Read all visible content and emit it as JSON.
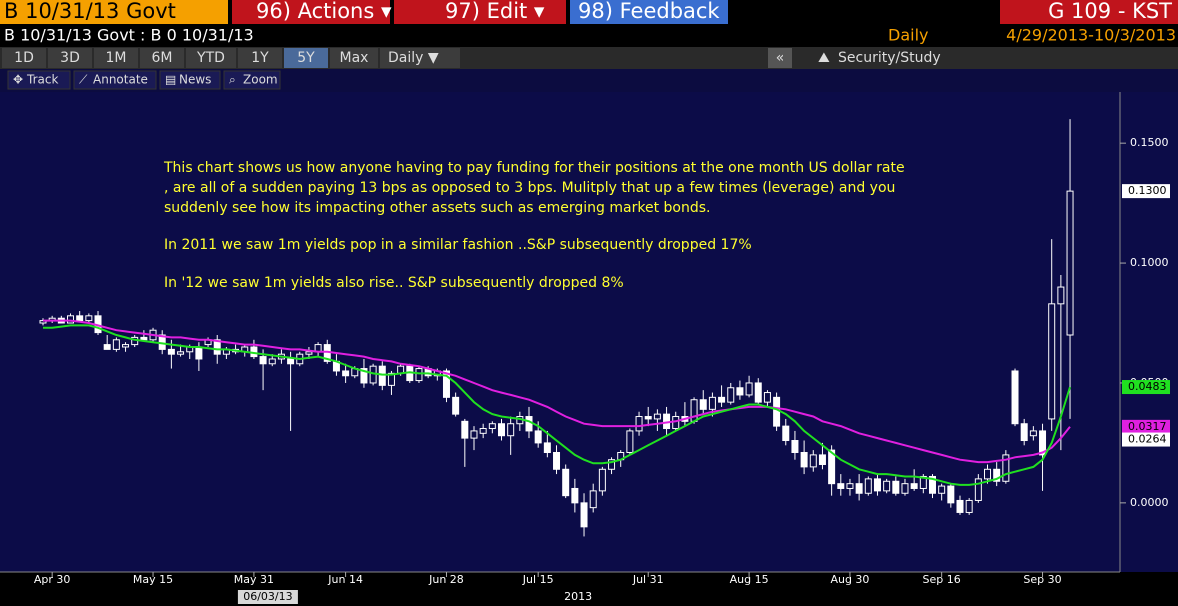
{
  "toolbar": {
    "security": "B 10/31/13 Govt",
    "actions": "96) Actions ▾",
    "edit": "97) Edit ▾",
    "feedback": "98) Feedback",
    "function": "G 109 - KST",
    "subtitle": "B 10/31/13 Govt : B 0 10/31/13",
    "frequency": "Daily",
    "range": "4/29/2013-10/3/2013",
    "periods": [
      "1D",
      "3D",
      "1M",
      "6M",
      "YTD",
      "1Y",
      "5Y",
      "Max"
    ],
    "active_period": 6,
    "period_frequency": "Daily ▼",
    "collapse": "«",
    "study": "Security/Study",
    "tools": [
      "Track",
      "Annotate",
      "News",
      "Zoom"
    ]
  },
  "chart_data": {
    "type": "candlestick",
    "annotation": [
      "This chart shows us how anyone having to pay funding for their positions at the one month US dollar rate",
      ", are all of a sudden paying 13 bps as opposed to 3 bps. Mulitply that up a few times (leverage) and you",
      "suddenly see how its impacting other assets such as emerging market bonds.",
      "In 2011 we saw 1m yields pop in a similar fashion ..S&P subsequently dropped 17%",
      "In '12 we saw 1m yields also rise.. S&P subsequently dropped 8%"
    ],
    "categories": [
      null,
      "Apr 30",
      null,
      null,
      null,
      null,
      null,
      null,
      null,
      null,
      null,
      null,
      "May 15",
      null,
      null,
      null,
      null,
      null,
      null,
      null,
      null,
      null,
      null,
      "May 31",
      null,
      null,
      null,
      null,
      null,
      null,
      null,
      null,
      null,
      "Jun 14",
      null,
      null,
      null,
      null,
      null,
      null,
      null,
      null,
      null,
      null,
      "Jun 28",
      null,
      null,
      null,
      null,
      null,
      null,
      null,
      null,
      null,
      "Jul 15",
      null,
      null,
      null,
      null,
      null,
      null,
      null,
      null,
      null,
      null,
      null,
      "Jul 31",
      null,
      null,
      null,
      null,
      null,
      null,
      null,
      null,
      null,
      null,
      "Aug 15",
      null,
      null,
      null,
      null,
      null,
      null,
      null,
      null,
      null,
      null,
      "Aug 30",
      null,
      null,
      null,
      null,
      null,
      null,
      null,
      null,
      null,
      "Sep 16",
      null,
      null,
      null,
      null,
      null,
      null,
      null,
      null,
      null,
      null,
      "Sep 30",
      null,
      null,
      null
    ],
    "date_marker": "06/03/13",
    "year": "2013",
    "ohlc": [
      [
        0.075,
        0.077,
        0.074,
        0.076
      ],
      [
        0.076,
        0.078,
        0.075,
        0.077
      ],
      [
        0.077,
        0.078,
        0.075,
        0.075
      ],
      [
        0.075,
        0.079,
        0.075,
        0.078
      ],
      [
        0.078,
        0.08,
        0.076,
        0.076
      ],
      [
        0.076,
        0.079,
        0.075,
        0.078
      ],
      [
        0.078,
        0.08,
        0.07,
        0.071
      ],
      [
        0.066,
        0.07,
        0.064,
        0.064
      ],
      [
        0.064,
        0.069,
        0.063,
        0.068
      ],
      [
        0.065,
        0.067,
        0.063,
        0.066
      ],
      [
        0.066,
        0.07,
        0.065,
        0.069
      ],
      [
        0.069,
        0.072,
        0.068,
        0.068
      ],
      [
        0.068,
        0.073,
        0.067,
        0.072
      ],
      [
        0.07,
        0.072,
        0.062,
        0.064
      ],
      [
        0.064,
        0.068,
        0.056,
        0.062
      ],
      [
        0.062,
        0.066,
        0.061,
        0.063
      ],
      [
        0.063,
        0.066,
        0.06,
        0.065
      ],
      [
        0.065,
        0.067,
        0.055,
        0.06
      ],
      [
        0.066,
        0.069,
        0.065,
        0.068
      ],
      [
        0.068,
        0.07,
        0.058,
        0.062
      ],
      [
        0.062,
        0.065,
        0.06,
        0.064
      ],
      [
        0.064,
        0.066,
        0.062,
        0.063
      ],
      [
        0.063,
        0.066,
        0.061,
        0.065
      ],
      [
        0.065,
        0.068,
        0.06,
        0.061
      ],
      [
        0.061,
        0.064,
        0.047,
        0.058
      ],
      [
        0.058,
        0.062,
        0.057,
        0.06
      ],
      [
        0.06,
        0.064,
        0.058,
        0.062
      ],
      [
        0.06,
        0.063,
        0.03,
        0.058
      ],
      [
        0.058,
        0.063,
        0.057,
        0.062
      ],
      [
        0.062,
        0.065,
        0.06,
        0.063
      ],
      [
        0.063,
        0.067,
        0.061,
        0.066
      ],
      [
        0.066,
        0.068,
        0.058,
        0.059
      ],
      [
        0.059,
        0.062,
        0.053,
        0.055
      ],
      [
        0.055,
        0.058,
        0.05,
        0.053
      ],
      [
        0.053,
        0.057,
        0.052,
        0.056
      ],
      [
        0.056,
        0.06,
        0.048,
        0.05
      ],
      [
        0.05,
        0.058,
        0.049,
        0.057
      ],
      [
        0.057,
        0.059,
        0.047,
        0.049
      ],
      [
        0.049,
        0.055,
        0.045,
        0.054
      ],
      [
        0.054,
        0.058,
        0.053,
        0.057
      ],
      [
        0.057,
        0.058,
        0.05,
        0.051
      ],
      [
        0.051,
        0.057,
        0.05,
        0.056
      ],
      [
        0.056,
        0.057,
        0.052,
        0.053
      ],
      [
        0.053,
        0.056,
        0.051,
        0.055
      ],
      [
        0.055,
        0.056,
        0.042,
        0.044
      ],
      [
        0.044,
        0.046,
        0.036,
        0.037
      ],
      [
        0.034,
        0.035,
        0.015,
        0.027
      ],
      [
        0.027,
        0.032,
        0.022,
        0.03
      ],
      [
        0.029,
        0.033,
        0.027,
        0.031
      ],
      [
        0.031,
        0.034,
        0.029,
        0.033
      ],
      [
        0.033,
        0.035,
        0.026,
        0.028
      ],
      [
        0.028,
        0.036,
        0.02,
        0.033
      ],
      [
        0.033,
        0.038,
        0.03,
        0.036
      ],
      [
        0.036,
        0.04,
        0.027,
        0.03
      ],
      [
        0.03,
        0.034,
        0.023,
        0.025
      ],
      [
        0.025,
        0.03,
        0.019,
        0.021
      ],
      [
        0.021,
        0.024,
        0.012,
        0.014
      ],
      [
        0.014,
        0.016,
        0.002,
        0.003
      ],
      [
        0.006,
        0.01,
        -0.004,
        0.0
      ],
      [
        0.0,
        0.004,
        -0.014,
        -0.01
      ],
      [
        -0.002,
        0.008,
        -0.004,
        0.005
      ],
      [
        0.005,
        0.015,
        0.003,
        0.014
      ],
      [
        0.014,
        0.019,
        0.012,
        0.018
      ],
      [
        0.018,
        0.022,
        0.015,
        0.021
      ],
      [
        0.021,
        0.031,
        0.02,
        0.03
      ],
      [
        0.03,
        0.038,
        0.028,
        0.036
      ],
      [
        0.036,
        0.04,
        0.032,
        0.035
      ],
      [
        0.035,
        0.039,
        0.03,
        0.037
      ],
      [
        0.037,
        0.04,
        0.028,
        0.031
      ],
      [
        0.031,
        0.038,
        0.03,
        0.036
      ],
      [
        0.036,
        0.042,
        0.032,
        0.034
      ],
      [
        0.034,
        0.044,
        0.033,
        0.043
      ],
      [
        0.043,
        0.047,
        0.037,
        0.039
      ],
      [
        0.039,
        0.046,
        0.036,
        0.044
      ],
      [
        0.044,
        0.049,
        0.04,
        0.042
      ],
      [
        0.042,
        0.05,
        0.041,
        0.048
      ],
      [
        0.048,
        0.051,
        0.043,
        0.045
      ],
      [
        0.045,
        0.053,
        0.044,
        0.05
      ],
      [
        0.05,
        0.052,
        0.041,
        0.042
      ],
      [
        0.042,
        0.047,
        0.04,
        0.046
      ],
      [
        0.044,
        0.046,
        0.03,
        0.032
      ],
      [
        0.032,
        0.035,
        0.024,
        0.026
      ],
      [
        0.026,
        0.03,
        0.018,
        0.021
      ],
      [
        0.021,
        0.026,
        0.012,
        0.015
      ],
      [
        0.015,
        0.022,
        0.013,
        0.02
      ],
      [
        0.02,
        0.025,
        0.014,
        0.016
      ],
      [
        0.022,
        0.024,
        0.003,
        0.008
      ],
      [
        0.008,
        0.012,
        0.003,
        0.006
      ],
      [
        0.006,
        0.01,
        0.003,
        0.008
      ],
      [
        0.008,
        0.012,
        0.001,
        0.004
      ],
      [
        0.004,
        0.011,
        0.003,
        0.01
      ],
      [
        0.01,
        0.012,
        0.003,
        0.005
      ],
      [
        0.005,
        0.01,
        0.004,
        0.009
      ],
      [
        0.009,
        0.011,
        0.003,
        0.004
      ],
      [
        0.004,
        0.01,
        0.003,
        0.008
      ],
      [
        0.008,
        0.014,
        0.005,
        0.006
      ],
      [
        0.006,
        0.012,
        0.004,
        0.011
      ],
      [
        0.011,
        0.012,
        0.002,
        0.004
      ],
      [
        0.004,
        0.008,
        0.001,
        0.007
      ],
      [
        0.007,
        0.008,
        -0.002,
        0.0
      ],
      [
        0.001,
        0.003,
        -0.005,
        -0.004
      ],
      [
        -0.004,
        0.002,
        -0.005,
        0.001
      ],
      [
        0.001,
        0.012,
        0.0,
        0.01
      ],
      [
        0.01,
        0.016,
        0.008,
        0.014
      ],
      [
        0.014,
        0.017,
        0.007,
        0.009
      ],
      [
        0.009,
        0.022,
        0.008,
        0.02
      ],
      [
        0.055,
        0.056,
        0.032,
        0.033
      ],
      [
        0.033,
        0.035,
        0.024,
        0.026
      ],
      [
        0.028,
        0.032,
        0.026,
        0.03
      ],
      [
        0.03,
        0.033,
        0.005,
        0.02
      ],
      [
        0.035,
        0.11,
        0.03,
        0.083
      ],
      [
        0.083,
        0.095,
        0.022,
        0.09
      ],
      [
        0.07,
        0.16,
        0.035,
        0.13
      ]
    ],
    "series": [
      {
        "color": "#e020e0",
        "values": [
          0.076,
          0.076,
          0.076,
          0.076,
          0.0755,
          0.075,
          0.074,
          0.073,
          0.072,
          0.0715,
          0.071,
          0.0705,
          0.07,
          0.0695,
          0.069,
          0.069,
          0.0685,
          0.068,
          0.068,
          0.0675,
          0.067,
          0.0665,
          0.066,
          0.066,
          0.0655,
          0.065,
          0.0645,
          0.064,
          0.064,
          0.0635,
          0.063,
          0.063,
          0.0625,
          0.062,
          0.0615,
          0.061,
          0.06,
          0.0595,
          0.059,
          0.058,
          0.0575,
          0.057,
          0.056,
          0.055,
          0.054,
          0.053,
          0.0515,
          0.05,
          0.0485,
          0.047,
          0.046,
          0.045,
          0.044,
          0.043,
          0.0415,
          0.04,
          0.038,
          0.036,
          0.0345,
          0.033,
          0.0325,
          0.032,
          0.032,
          0.032,
          0.032,
          0.032,
          0.0325,
          0.033,
          0.0335,
          0.034,
          0.035,
          0.036,
          0.037,
          0.038,
          0.0385,
          0.039,
          0.0395,
          0.04,
          0.04,
          0.04,
          0.0395,
          0.039,
          0.038,
          0.037,
          0.036,
          0.034,
          0.033,
          0.032,
          0.0305,
          0.029,
          0.028,
          0.027,
          0.026,
          0.025,
          0.024,
          0.023,
          0.022,
          0.021,
          0.02,
          0.019,
          0.018,
          0.0175,
          0.017,
          0.017,
          0.0175,
          0.018,
          0.019,
          0.0195,
          0.02,
          0.021,
          0.023,
          0.027,
          0.0317
        ]
      },
      {
        "color": "#20e020",
        "values": [
          0.073,
          0.073,
          0.0735,
          0.074,
          0.074,
          0.074,
          0.073,
          0.0715,
          0.07,
          0.069,
          0.068,
          0.0675,
          0.067,
          0.0665,
          0.066,
          0.0655,
          0.065,
          0.065,
          0.0645,
          0.064,
          0.064,
          0.0635,
          0.063,
          0.0625,
          0.062,
          0.0615,
          0.061,
          0.0605,
          0.06,
          0.0605,
          0.061,
          0.06,
          0.059,
          0.0575,
          0.056,
          0.055,
          0.054,
          0.0535,
          0.0535,
          0.054,
          0.0545,
          0.054,
          0.054,
          0.0535,
          0.053,
          0.05,
          0.046,
          0.042,
          0.039,
          0.037,
          0.036,
          0.0355,
          0.035,
          0.034,
          0.032,
          0.029,
          0.026,
          0.023,
          0.02,
          0.018,
          0.0165,
          0.0165,
          0.017,
          0.018,
          0.02,
          0.022,
          0.024,
          0.026,
          0.028,
          0.03,
          0.032,
          0.034,
          0.036,
          0.037,
          0.038,
          0.039,
          0.04,
          0.041,
          0.041,
          0.04,
          0.039,
          0.037,
          0.034,
          0.03,
          0.027,
          0.024,
          0.021,
          0.018,
          0.016,
          0.014,
          0.013,
          0.012,
          0.012,
          0.0115,
          0.011,
          0.011,
          0.0105,
          0.01,
          0.009,
          0.008,
          0.0075,
          0.0075,
          0.008,
          0.009,
          0.01,
          0.012,
          0.013,
          0.014,
          0.015,
          0.018,
          0.025,
          0.036,
          0.0483
        ]
      }
    ],
    "tags": [
      {
        "value": 0.13,
        "label": "0.1300",
        "color": "#ffffff"
      },
      {
        "value": 0.0483,
        "label": "0.0483",
        "color": "#20e020"
      },
      {
        "value": 0.0317,
        "label": "0.0317",
        "color": "#e020e0"
      },
      {
        "value": 0.0264,
        "label": "0.0264",
        "color": "#ffffff"
      }
    ],
    "ylim": [
      -0.028,
      0.168
    ],
    "yticks": [
      {
        "value": 0,
        "label": "0.0000"
      },
      {
        "value": 0.05,
        "label": "0.0500"
      },
      {
        "value": 0.1,
        "label": "0.1000"
      },
      {
        "value": 0.15,
        "label": "0.1500"
      }
    ]
  }
}
